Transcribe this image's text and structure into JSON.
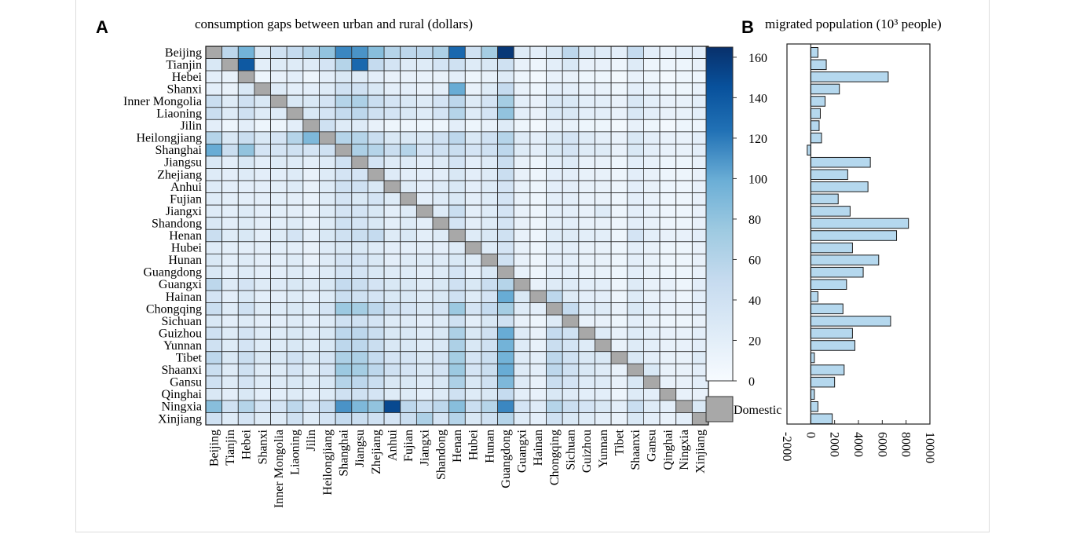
{
  "panel_a": {
    "label": "A",
    "title": "consumption gaps between urban and rural (dollars)"
  },
  "panel_b": {
    "label": "B",
    "title": "migrated population (10³ people)"
  },
  "colorbar": {
    "ticks": [
      0,
      20,
      40,
      60,
      80,
      100,
      120,
      140,
      160
    ],
    "min": 0,
    "max": 165,
    "domestic_label": "Domestic",
    "domestic_color": "#a8a8a8"
  },
  "colors": {
    "low": "#f7fbff",
    "high": "#08306b",
    "bar_fill": "#b5d8ee",
    "grid": "#333333"
  },
  "chart_data": [
    {
      "type": "heatmap",
      "title": "consumption gaps between urban and rural (dollars)",
      "rows": [
        "Beijing",
        "Tianjin",
        "Hebei",
        "Shanxi",
        "Inner Mongolia",
        "Liaoning",
        "Jilin",
        "Heilongjiang",
        "Shanghai",
        "Jiangsu",
        "Zhejiang",
        "Anhui",
        "Fujian",
        "Jiangxi",
        "Shandong",
        "Henan",
        "Hubei",
        "Hunan",
        "Guangdong",
        "Guangxi",
        "Hainan",
        "Chongqing",
        "Sichuan",
        "Guizhou",
        "Yunnan",
        "Tibet",
        "Shaanxi",
        "Gansu",
        "Qinghai",
        "Ningxia",
        "Xinjiang"
      ],
      "columns": [
        "Beijing",
        "Tianjin",
        "Hebei",
        "Shanxi",
        "Inner Mongolia",
        "Liaoning",
        "Jilin",
        "Heilongjiang",
        "Shanghai",
        "Jiangsu",
        "Zhejiang",
        "Anhui",
        "Fujian",
        "Jiangxi",
        "Shandong",
        "Henan",
        "Hubei",
        "Hunan",
        "Guangdong",
        "Guangxi",
        "Hainan",
        "Chongqing",
        "Sichuan",
        "Guizhou",
        "Yunnan",
        "Tibet",
        "Shaanxi",
        "Gansu",
        "Qinghai",
        "Ningxia",
        "Xinjiang"
      ],
      "value_range": [
        0,
        165
      ],
      "diagonal": "Domestic",
      "values": [
        [
          null,
          55,
          95,
          30,
          40,
          50,
          60,
          80,
          115,
          110,
          85,
          60,
          55,
          55,
          65,
          130,
          40,
          70,
          160,
          25,
          20,
          30,
          55,
          30,
          25,
          20,
          50,
          20,
          15,
          20,
          20
        ],
        [
          30,
          null,
          140,
          20,
          25,
          25,
          25,
          35,
          60,
          130,
          50,
          35,
          25,
          25,
          35,
          40,
          25,
          30,
          40,
          15,
          10,
          20,
          30,
          15,
          15,
          10,
          25,
          10,
          10,
          10,
          15
        ],
        [
          20,
          15,
          null,
          10,
          15,
          20,
          10,
          20,
          30,
          25,
          20,
          15,
          15,
          15,
          15,
          20,
          10,
          15,
          25,
          10,
          5,
          15,
          15,
          10,
          10,
          5,
          15,
          10,
          5,
          10,
          10
        ],
        [
          20,
          15,
          30,
          null,
          25,
          20,
          20,
          25,
          40,
          40,
          30,
          20,
          20,
          15,
          20,
          100,
          15,
          25,
          50,
          15,
          10,
          20,
          20,
          15,
          15,
          10,
          20,
          15,
          10,
          10,
          15
        ],
        [
          45,
          25,
          40,
          30,
          null,
          30,
          30,
          35,
          60,
          65,
          45,
          35,
          30,
          25,
          35,
          55,
          25,
          35,
          70,
          20,
          15,
          30,
          30,
          20,
          20,
          15,
          30,
          20,
          15,
          15,
          20
        ],
        [
          45,
          25,
          40,
          25,
          25,
          null,
          30,
          35,
          50,
          55,
          40,
          35,
          30,
          25,
          35,
          60,
          25,
          35,
          80,
          20,
          15,
          30,
          30,
          20,
          20,
          15,
          30,
          20,
          15,
          15,
          20
        ],
        [
          20,
          10,
          20,
          10,
          10,
          20,
          null,
          40,
          25,
          25,
          15,
          10,
          10,
          10,
          10,
          20,
          10,
          15,
          25,
          10,
          5,
          15,
          15,
          10,
          10,
          5,
          15,
          10,
          5,
          10,
          10
        ],
        [
          60,
          30,
          45,
          30,
          35,
          60,
          90,
          null,
          60,
          60,
          45,
          30,
          30,
          30,
          40,
          55,
          30,
          40,
          60,
          25,
          20,
          30,
          35,
          25,
          20,
          15,
          30,
          20,
          15,
          15,
          20
        ],
        [
          100,
          45,
          80,
          35,
          35,
          40,
          35,
          40,
          null,
          65,
          60,
          45,
          60,
          35,
          40,
          45,
          35,
          40,
          55,
          25,
          20,
          30,
          35,
          25,
          25,
          15,
          30,
          20,
          15,
          15,
          20
        ],
        [
          30,
          20,
          30,
          20,
          25,
          25,
          20,
          25,
          40,
          null,
          35,
          25,
          25,
          20,
          25,
          35,
          20,
          25,
          45,
          15,
          10,
          20,
          25,
          15,
          15,
          10,
          20,
          15,
          10,
          10,
          15
        ],
        [
          25,
          20,
          25,
          20,
          20,
          25,
          15,
          25,
          35,
          35,
          null,
          25,
          20,
          20,
          20,
          30,
          20,
          25,
          45,
          15,
          10,
          20,
          20,
          15,
          15,
          10,
          20,
          15,
          10,
          10,
          15
        ],
        [
          25,
          20,
          20,
          20,
          20,
          25,
          15,
          25,
          40,
          40,
          30,
          null,
          25,
          20,
          25,
          30,
          20,
          25,
          35,
          15,
          10,
          20,
          20,
          15,
          15,
          10,
          20,
          15,
          10,
          10,
          15
        ],
        [
          25,
          20,
          20,
          20,
          20,
          20,
          15,
          25,
          35,
          30,
          35,
          25,
          null,
          20,
          25,
          30,
          20,
          25,
          35,
          15,
          10,
          20,
          20,
          15,
          15,
          10,
          20,
          15,
          10,
          10,
          15
        ],
        [
          25,
          20,
          25,
          20,
          20,
          20,
          15,
          25,
          35,
          35,
          30,
          20,
          25,
          null,
          25,
          45,
          20,
          25,
          35,
          15,
          10,
          20,
          20,
          15,
          25,
          10,
          20,
          15,
          10,
          10,
          15
        ],
        [
          30,
          20,
          25,
          20,
          20,
          25,
          15,
          25,
          40,
          35,
          30,
          20,
          25,
          20,
          null,
          35,
          20,
          25,
          35,
          15,
          10,
          20,
          20,
          15,
          15,
          10,
          20,
          15,
          10,
          10,
          15
        ],
        [
          45,
          25,
          30,
          20,
          25,
          35,
          20,
          30,
          40,
          45,
          50,
          25,
          30,
          20,
          25,
          null,
          25,
          30,
          40,
          15,
          10,
          25,
          25,
          20,
          20,
          10,
          35,
          20,
          15,
          15,
          20
        ],
        [
          25,
          20,
          20,
          20,
          20,
          20,
          15,
          25,
          30,
          30,
          25,
          20,
          20,
          20,
          20,
          25,
          null,
          25,
          35,
          15,
          10,
          20,
          20,
          15,
          15,
          10,
          20,
          15,
          10,
          10,
          15
        ],
        [
          30,
          20,
          25,
          20,
          20,
          25,
          15,
          25,
          35,
          35,
          30,
          20,
          25,
          25,
          25,
          30,
          25,
          null,
          40,
          15,
          10,
          20,
          20,
          15,
          15,
          10,
          20,
          15,
          10,
          10,
          15
        ],
        [
          30,
          20,
          25,
          20,
          20,
          25,
          20,
          25,
          35,
          35,
          30,
          25,
          25,
          20,
          25,
          35,
          20,
          30,
          null,
          15,
          10,
          20,
          20,
          15,
          15,
          10,
          20,
          15,
          10,
          10,
          15
        ],
        [
          55,
          25,
          35,
          25,
          25,
          30,
          25,
          30,
          50,
          45,
          35,
          30,
          30,
          25,
          30,
          40,
          30,
          45,
          60,
          null,
          15,
          25,
          25,
          20,
          20,
          10,
          25,
          15,
          15,
          10,
          20
        ],
        [
          35,
          20,
          30,
          20,
          20,
          25,
          20,
          25,
          45,
          40,
          35,
          30,
          30,
          25,
          30,
          40,
          25,
          35,
          100,
          30,
          null,
          55,
          25,
          20,
          20,
          10,
          25,
          15,
          15,
          10,
          20
        ],
        [
          45,
          25,
          40,
          25,
          25,
          30,
          25,
          35,
          75,
          70,
          55,
          40,
          35,
          30,
          35,
          75,
          35,
          50,
          70,
          25,
          20,
          null,
          50,
          25,
          25,
          15,
          30,
          20,
          15,
          15,
          20
        ],
        [
          30,
          20,
          25,
          20,
          20,
          25,
          20,
          25,
          40,
          40,
          35,
          25,
          25,
          20,
          25,
          40,
          20,
          30,
          40,
          15,
          10,
          25,
          null,
          15,
          15,
          10,
          20,
          15,
          10,
          10,
          15
        ],
        [
          40,
          25,
          35,
          25,
          25,
          30,
          25,
          30,
          55,
          55,
          45,
          30,
          30,
          25,
          30,
          65,
          30,
          40,
          100,
          25,
          15,
          50,
          40,
          null,
          25,
          15,
          25,
          20,
          15,
          15,
          20
        ],
        [
          40,
          25,
          35,
          25,
          25,
          30,
          25,
          30,
          55,
          55,
          45,
          30,
          30,
          25,
          30,
          65,
          30,
          40,
          95,
          25,
          15,
          45,
          35,
          25,
          null,
          15,
          25,
          20,
          15,
          15,
          20
        ],
        [
          55,
          30,
          45,
          30,
          30,
          40,
          30,
          35,
          65,
          65,
          50,
          35,
          35,
          30,
          35,
          70,
          35,
          45,
          95,
          25,
          20,
          55,
          40,
          30,
          30,
          null,
          30,
          20,
          15,
          15,
          25
        ],
        [
          45,
          25,
          40,
          25,
          25,
          35,
          25,
          35,
          75,
          70,
          55,
          40,
          35,
          30,
          35,
          75,
          35,
          45,
          100,
          25,
          20,
          55,
          40,
          30,
          25,
          15,
          null,
          30,
          15,
          15,
          20
        ],
        [
          40,
          25,
          35,
          25,
          25,
          30,
          25,
          30,
          60,
          55,
          45,
          30,
          30,
          25,
          30,
          65,
          30,
          40,
          90,
          25,
          15,
          45,
          35,
          25,
          25,
          15,
          30,
          null,
          15,
          15,
          20
        ],
        [
          30,
          20,
          30,
          20,
          20,
          25,
          20,
          25,
          40,
          40,
          35,
          25,
          25,
          20,
          25,
          40,
          25,
          30,
          50,
          20,
          15,
          30,
          25,
          20,
          20,
          10,
          25,
          20,
          null,
          15,
          15
        ],
        [
          85,
          40,
          60,
          35,
          35,
          55,
          35,
          50,
          110,
          90,
          80,
          150,
          55,
          45,
          55,
          85,
          45,
          60,
          115,
          35,
          25,
          60,
          45,
          35,
          30,
          20,
          45,
          25,
          20,
          null,
          30
        ],
        [
          40,
          25,
          35,
          25,
          25,
          40,
          25,
          35,
          50,
          45,
          40,
          35,
          45,
          65,
          35,
          60,
          30,
          40,
          60,
          25,
          20,
          40,
          30,
          25,
          20,
          15,
          30,
          20,
          15,
          20,
          null
        ]
      ]
    },
    {
      "type": "bar",
      "orientation": "horizontal",
      "title": "migrated population (10³ people)",
      "categories": [
        "Beijing",
        "Tianjin",
        "Hebei",
        "Shanxi",
        "Inner Mongolia",
        "Liaoning",
        "Jilin",
        "Heilongjiang",
        "Shanghai",
        "Jiangsu",
        "Zhejiang",
        "Anhui",
        "Fujian",
        "Jiangxi",
        "Shandong",
        "Henan",
        "Hubei",
        "Hunan",
        "Guangdong",
        "Guangxi",
        "Hainan",
        "Chongqing",
        "Sichuan",
        "Guizhou",
        "Yunnan",
        "Tibet",
        "Shaanxi",
        "Gansu",
        "Qinghai",
        "Ningxia",
        "Xinjiang"
      ],
      "values": [
        600,
        1300,
        6500,
        2400,
        1200,
        800,
        700,
        900,
        -300,
        5000,
        3100,
        4800,
        2300,
        3300,
        8200,
        7200,
        3500,
        5700,
        4400,
        3000,
        600,
        2700,
        6700,
        3500,
        3700,
        300,
        2800,
        2000,
        300,
        600,
        1800
      ],
      "xlim": [
        -2000,
        10000
      ],
      "xticks": [
        -2000,
        0,
        2000,
        4000,
        6000,
        8000,
        10000
      ]
    }
  ]
}
